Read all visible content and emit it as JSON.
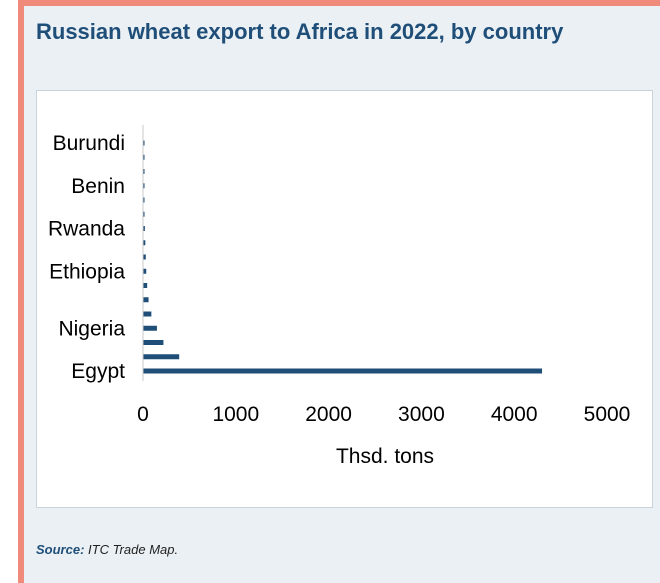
{
  "title": "Russian wheat export to Africa in 2022, by country",
  "source": {
    "label": "Source:",
    "text": "ITC Trade Map."
  },
  "colors": {
    "bar": "#1f4e79",
    "title": "#1f4e79",
    "accent_rule": "#f08b7c",
    "panel_bg": "#eaf0f4"
  },
  "chart_data": {
    "type": "bar",
    "orientation": "horizontal",
    "title": "Russian wheat export to Africa in 2022, by country",
    "xlabel": "Thsd. tons",
    "ylabel": "",
    "xlim": [
      0,
      5000
    ],
    "x_ticks": [
      "0",
      "1000",
      "2000",
      "3000",
      "4000",
      "5000"
    ],
    "grid": false,
    "categories_bottom_to_top": [
      "Egypt",
      "",
      "",
      "Nigeria",
      "",
      "",
      "",
      "Ethiopia",
      "",
      "",
      "Rwanda",
      "",
      "",
      "Benin",
      "",
      "",
      "Burundi"
    ],
    "values_bottom_to_top": [
      4300,
      390,
      220,
      150,
      90,
      60,
      45,
      35,
      30,
      25,
      20,
      12,
      10,
      8,
      6,
      4,
      2
    ],
    "labeled_categories": [
      "Burundi",
      "Benin",
      "Rwanda",
      "Ethiopia",
      "Nigeria",
      "Egypt"
    ]
  }
}
